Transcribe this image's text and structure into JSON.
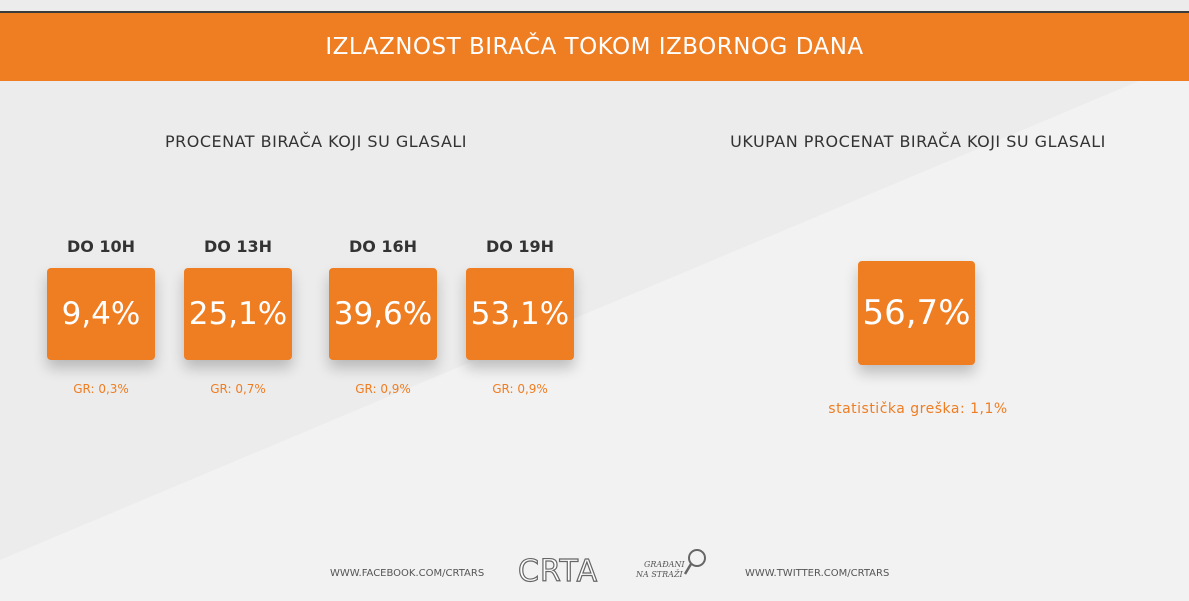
{
  "header": {
    "title": "IZLAZNOST BIRAČA TOKOM IZBORNOG DANA"
  },
  "left": {
    "title": "PROCENAT BIRAČA KOJI SU GLASALI",
    "items": [
      {
        "label": "DO 10H",
        "value": "9,4%",
        "error": "GR: 0,3%"
      },
      {
        "label": "DO 13H",
        "value": "25,1%",
        "error": "GR: 0,7%"
      },
      {
        "label": "DO 16H",
        "value": "39,6%",
        "error": "GR: 0,9%"
      },
      {
        "label": "DO 19H",
        "value": "53,1%",
        "error": "GR: 0,9%"
      }
    ]
  },
  "right": {
    "title": "UKUPAN PROCENAT BIRAČA KOJI SU GLASALI",
    "value": "56,7%",
    "error": "statistička greška: 1,1%"
  },
  "footer": {
    "facebook": "WWW.FACEBOOK.COM/CRTARS",
    "logo": "CRTA",
    "slogan": [
      "GRAĐANI",
      "NA STRAŽI"
    ],
    "twitter": "WWW.TWITTER.COM/CRTARS"
  }
}
